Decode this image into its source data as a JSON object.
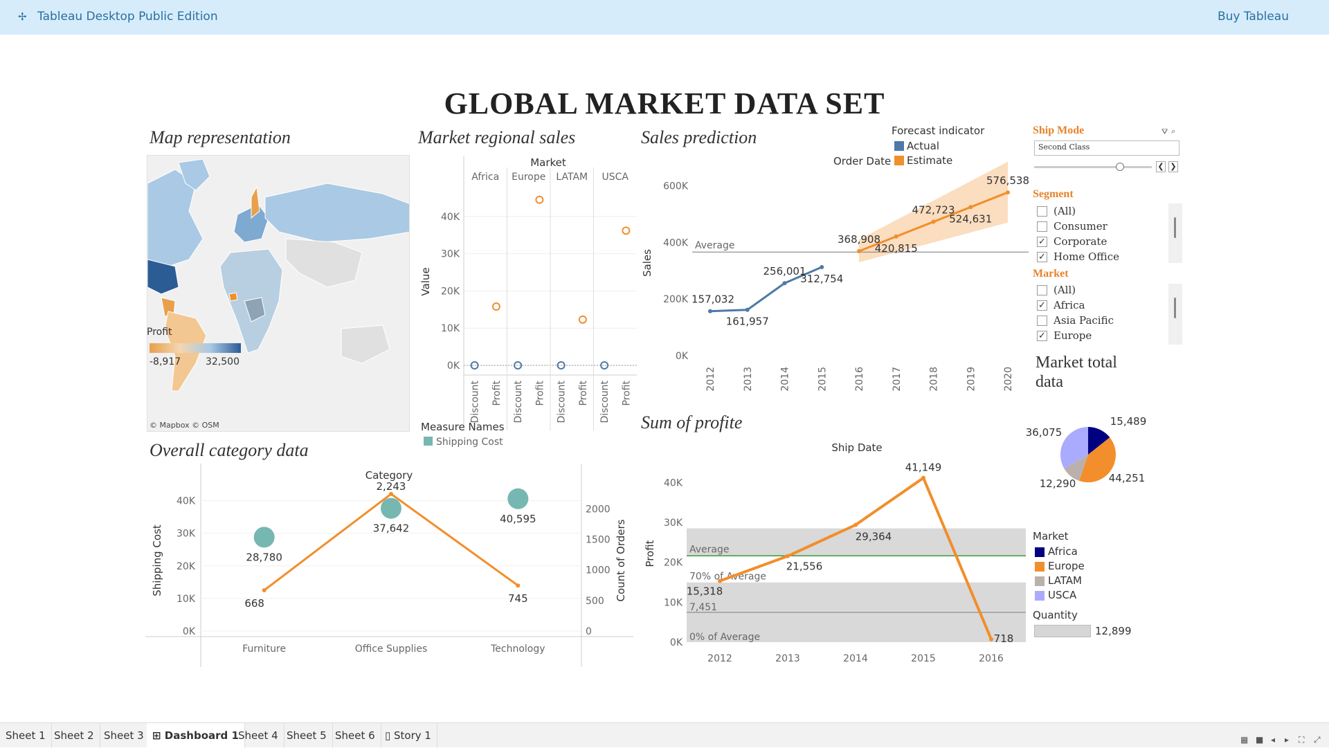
{
  "app": {
    "title": "Tableau Desktop Public Edition",
    "buy_label": "Buy Tableau",
    "logo_icon": "tableau-logo-icon"
  },
  "dashboard": {
    "title": "GLOBAL MARKET DATA SET"
  },
  "panels": {
    "map": {
      "title": "Map representation",
      "legend_title": "Profit",
      "legend_min": "-8,917",
      "legend_max": "32,500",
      "credit": "© Mapbox © OSM"
    },
    "regional": {
      "title": "Market regional sales"
    },
    "prediction": {
      "title": "Sales prediction"
    },
    "category": {
      "title": "Overall category data"
    },
    "profit": {
      "title": "Sum of profite"
    },
    "market_total": {
      "title_line1": "Market total",
      "title_line2": "data"
    }
  },
  "colors": {
    "actual": "#4e79a7",
    "estimate": "#f28e2b",
    "teal": "#76b7b2",
    "africa": "#000080",
    "europe": "#f28e2b",
    "latam": "#bab0ac",
    "usca": "#aaaaff",
    "band": "#d9d9d9",
    "avg_line": "#3a9a3a"
  },
  "filters": {
    "ship_mode": {
      "title": "Ship Mode",
      "value": "Second Class",
      "filter_icon": "filter-icon",
      "search_icon": "search-icon",
      "prev_label": "❮",
      "next_label": "❯"
    },
    "segment": {
      "title": "Segment",
      "items": [
        {
          "label": "(All)",
          "checked": false
        },
        {
          "label": "Consumer",
          "checked": false
        },
        {
          "label": "Corporate",
          "checked": true
        },
        {
          "label": "Home Office",
          "checked": true
        }
      ]
    },
    "market": {
      "title": "Market",
      "items": [
        {
          "label": "(All)",
          "checked": false
        },
        {
          "label": "Africa",
          "checked": true
        },
        {
          "label": "Asia Pacific",
          "checked": false
        },
        {
          "label": "Europe",
          "checked": true
        }
      ]
    }
  },
  "forecast_legend": {
    "title": "Forecast indicator",
    "order_date_label": "Order Date",
    "items": [
      "Actual",
      "Estimate"
    ]
  },
  "pie_legend": {
    "title": "Market",
    "items": [
      "Africa",
      "Europe",
      "LATAM",
      "USCA"
    ],
    "quantity_title": "Quantity",
    "quantity_value": "12,899"
  },
  "tabs": [
    {
      "label": "Sheet 1",
      "active": false
    },
    {
      "label": "Sheet 2",
      "active": false
    },
    {
      "label": "Sheet 3",
      "active": false
    },
    {
      "label": "⊞ Dashboard 1",
      "active": true
    },
    {
      "label": "Sheet 4",
      "active": false
    },
    {
      "label": "Sheet 5",
      "active": false
    },
    {
      "label": "Sheet 6",
      "active": false
    },
    {
      "label": "▯ Story 1",
      "active": false
    }
  ],
  "status_icons": [
    "grid-view-icon",
    "filmstrip-icon",
    "prev-sheet-icon",
    "next-sheet-icon",
    "fit-icon",
    "fullscreen-icon"
  ],
  "chart_data": [
    {
      "id": "regional",
      "type": "scatter",
      "title": "Market regional sales",
      "header": "Market",
      "ylabel": "Value",
      "ylim": [
        0,
        45000
      ],
      "yticks": [
        "0K",
        "10K",
        "20K",
        "30K",
        "40K"
      ],
      "columns": [
        {
          "market": "Africa",
          "measures": [
            {
              "name": "Discount",
              "value": 0
            },
            {
              "name": "Profit",
              "value": 15800
            }
          ]
        },
        {
          "market": "Europe",
          "measures": [
            {
              "name": "Discount",
              "value": 0
            },
            {
              "name": "Profit",
              "value": 44500
            }
          ]
        },
        {
          "market": "LATAM",
          "measures": [
            {
              "name": "Discount",
              "value": 0
            },
            {
              "name": "Profit",
              "value": 12300
            }
          ]
        },
        {
          "market": "USCA",
          "measures": [
            {
              "name": "Discount",
              "value": 0
            },
            {
              "name": "Profit",
              "value": 36200
            }
          ]
        }
      ],
      "legend": {
        "title": "Measure Names",
        "items": [
          "Shipping Cost"
        ]
      }
    },
    {
      "id": "prediction",
      "type": "line",
      "title": "Sales prediction",
      "ylabel": "Sales",
      "ylim": [
        0,
        650000
      ],
      "yticks": [
        "0K",
        "200K",
        "400K",
        "600K"
      ],
      "x": [
        "2012",
        "2013",
        "2014",
        "2015",
        "2016",
        "2017",
        "2018",
        "2019",
        "2020"
      ],
      "reference_line": {
        "label": "Average",
        "value": 366000
      },
      "series": [
        {
          "name": "Actual",
          "points": [
            {
              "x": "2012",
              "y": 157032,
              "label": "157,032"
            },
            {
              "x": "2013",
              "y": 161957,
              "label": "161,957"
            },
            {
              "x": "2014",
              "y": 256001,
              "label": "256,001"
            },
            {
              "x": "2015",
              "y": 312754,
              "label": "312,754"
            }
          ]
        },
        {
          "name": "Estimate",
          "points": [
            {
              "x": "2016",
              "y": 368908,
              "label": "368,908"
            },
            {
              "x": "2017",
              "y": 420815,
              "label": "420,815"
            },
            {
              "x": "2018",
              "y": 472723,
              "label": "472,723"
            },
            {
              "x": "2019",
              "y": 524631,
              "label": "524,631"
            },
            {
              "x": "2020",
              "y": 576538,
              "label": "576,538"
            }
          ]
        }
      ],
      "band": [
        {
          "x": "2016",
          "lo": 330000,
          "hi": 410000
        },
        {
          "x": "2020",
          "lo": 470000,
          "hi": 685000
        }
      ]
    },
    {
      "id": "category",
      "type": "scatter",
      "title": "Overall category data",
      "header": "Category",
      "ylabel": "Shipping Cost",
      "y2label": "Count of Orders",
      "ylim": [
        0,
        45000
      ],
      "y2lim": [
        0,
        2400
      ],
      "yticks": [
        "0K",
        "10K",
        "20K",
        "30K",
        "40K"
      ],
      "y2ticks": [
        "0",
        "500",
        "1000",
        "1500",
        "2000"
      ],
      "categories": [
        "Furniture",
        "Office Supplies",
        "Technology"
      ],
      "series": [
        {
          "name": "Shipping Cost",
          "values": [
            28780,
            37642,
            40595
          ],
          "labels": [
            "28,780",
            "37,642",
            "40,595"
          ]
        },
        {
          "name": "Count of Orders",
          "values": [
            668,
            2243,
            745
          ],
          "labels": [
            "668",
            "2,243",
            "745"
          ]
        }
      ]
    },
    {
      "id": "profit",
      "type": "line",
      "title": "Sum of profite",
      "header": "Ship Date",
      "ylabel": "Profit",
      "ylim": [
        0,
        43000
      ],
      "yticks": [
        "0K",
        "10K",
        "20K",
        "30K",
        "40K"
      ],
      "x": [
        "2012",
        "2013",
        "2014",
        "2015",
        "2016"
      ],
      "series": [
        {
          "name": "Profit",
          "values": [
            15318,
            21556,
            29364,
            41149,
            718
          ],
          "labels": [
            "15,318",
            "21,556",
            "29,364",
            "41,149",
            "718"
          ]
        }
      ],
      "reference_lines": [
        {
          "label": "Average",
          "value": 21621
        },
        {
          "label": "70% of Average",
          "value": 15135
        },
        {
          "label": "7,451",
          "value": 7451
        },
        {
          "label": "0% of Average",
          "value": 0
        }
      ]
    },
    {
      "id": "market_pie",
      "type": "pie",
      "slices": [
        {
          "name": "Africa",
          "value": 15489,
          "label": "15,489"
        },
        {
          "name": "Europe",
          "value": 44251,
          "label": "44,251"
        },
        {
          "name": "LATAM",
          "value": 12290,
          "label": "12,290"
        },
        {
          "name": "USCA",
          "value": 36075,
          "label": "36,075"
        }
      ]
    }
  ]
}
